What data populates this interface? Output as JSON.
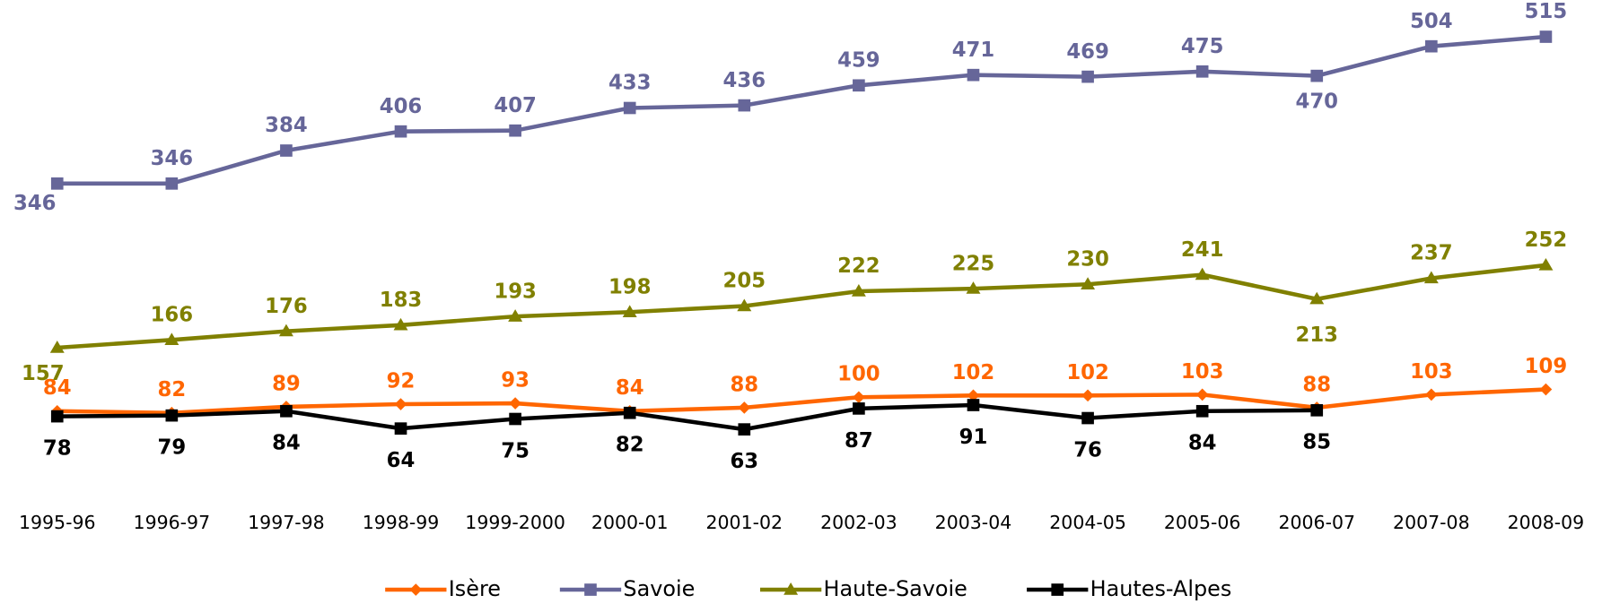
{
  "chart_data": {
    "type": "line",
    "categories": [
      "1995-96",
      "1996-97",
      "1997-98",
      "1998-99",
      "1999-2000",
      "2000-01",
      "2001-02",
      "2002-03",
      "2003-04",
      "2004-05",
      "2005-06",
      "2006-07",
      "2007-08",
      "2008-09"
    ],
    "series": [
      {
        "name": "Isère",
        "color": "#ff6600",
        "marker": "diamond",
        "values": [
          84,
          82,
          89,
          92,
          93,
          84,
          88,
          100,
          102,
          102,
          103,
          88,
          103,
          109
        ]
      },
      {
        "name": "Savoie",
        "color": "#666699",
        "marker": "square",
        "values": [
          346,
          346,
          384,
          406,
          407,
          433,
          436,
          459,
          471,
          469,
          475,
          470,
          504,
          515
        ]
      },
      {
        "name": "Haute-Savoie",
        "color": "#808000",
        "marker": "triangle",
        "values": [
          157,
          166,
          176,
          183,
          193,
          198,
          205,
          222,
          225,
          230,
          241,
          213,
          237,
          252
        ]
      },
      {
        "name": "Hautes-Alpes",
        "color": "#000000",
        "marker": "square",
        "values": [
          78,
          79,
          84,
          64,
          75,
          82,
          63,
          87,
          91,
          76,
          84,
          85,
          null,
          null
        ]
      }
    ],
    "legend": "bottom"
  }
}
